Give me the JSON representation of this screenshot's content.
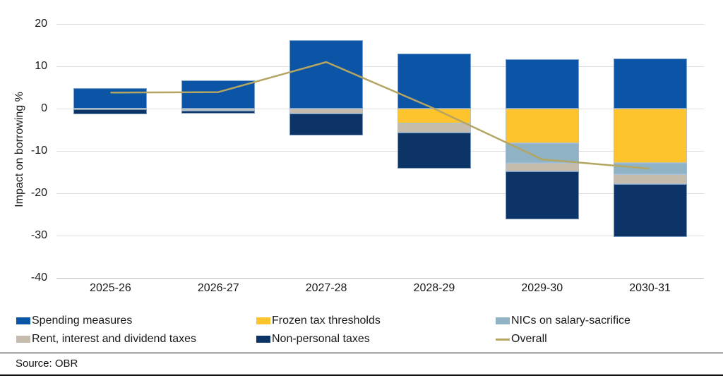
{
  "chart_data": {
    "type": "bar",
    "stacked": true,
    "ylabel": "Impact on borrowing %",
    "ylim": [
      -40,
      20
    ],
    "ytick_interval": 10,
    "yticks": [
      20,
      10,
      0,
      -10,
      -20,
      -30,
      -40
    ],
    "grid": true,
    "legend_position": "bottom",
    "categories": [
      "2025-26",
      "2026-27",
      "2027-28",
      "2028-29",
      "2029-30",
      "2030-31"
    ],
    "series": [
      {
        "name": "Spending measures",
        "type": "bar",
        "color": "#0B54A6",
        "values": [
          4.8,
          6.6,
          16.2,
          13.0,
          11.6,
          11.8
        ]
      },
      {
        "name": "Frozen tax thresholds",
        "type": "bar",
        "color": "#FEC42E",
        "values": [
          0,
          0,
          0,
          -3.5,
          -8.1,
          -12.9
        ]
      },
      {
        "name": "NICs on salary-sacrifice",
        "type": "bar",
        "color": "#8FB3C5",
        "values": [
          0,
          0,
          0,
          0,
          -4.7,
          -2.6
        ]
      },
      {
        "name": "Rent, interest and dividend taxes",
        "type": "bar",
        "color": "#C6BCAD",
        "values": [
          -0.2,
          -0.5,
          -1.1,
          -2.2,
          -2.0,
          -2.3
        ]
      },
      {
        "name": "Non-personal taxes",
        "type": "bar",
        "color": "#0C3467",
        "values": [
          -1.2,
          -0.6,
          -5.3,
          -8.5,
          -11.4,
          -12.5
        ]
      },
      {
        "name": "Overall",
        "type": "line",
        "color": "#B4A562",
        "values": [
          3.8,
          3.9,
          11.0,
          0.0,
          -12.0,
          -14.2
        ]
      }
    ],
    "source": "Source: OBR"
  },
  "colors": {
    "gridline": "#dddddd",
    "axisline": "#bfbfbf",
    "text": "#1a1a1a",
    "rule": "#111111"
  }
}
